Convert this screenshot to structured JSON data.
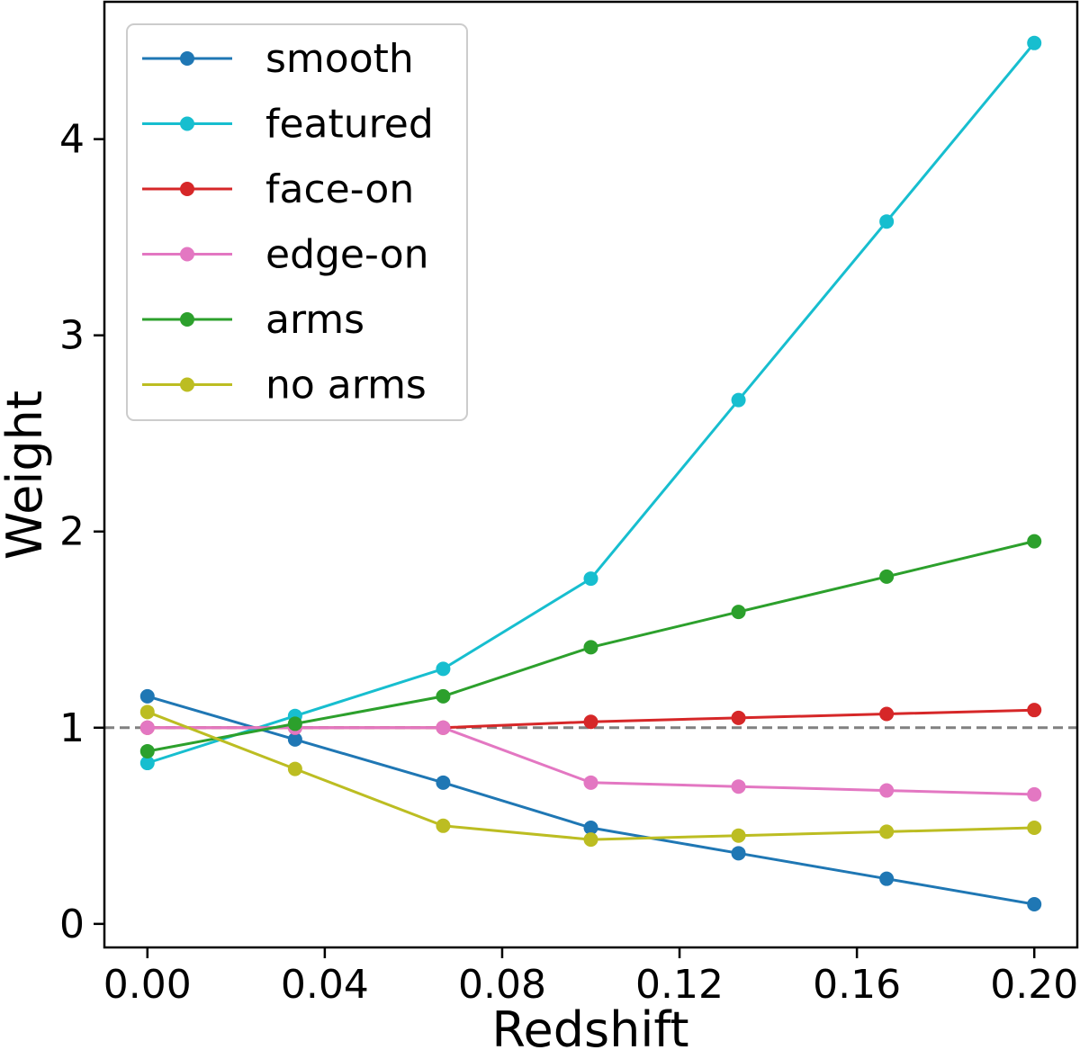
{
  "chart_data": {
    "type": "line",
    "xlabel": "Redshift",
    "ylabel": "Weight",
    "xlim": [
      -0.0097,
      0.2097
    ],
    "ylim": [
      -0.12,
      4.7
    ],
    "xticks": [
      0.0,
      0.04,
      0.08,
      0.12,
      0.16,
      0.2
    ],
    "xtick_labels": [
      "0.00",
      "0.04",
      "0.08",
      "0.12",
      "0.16",
      "0.20"
    ],
    "yticks": [
      0,
      1,
      2,
      3,
      4
    ],
    "ytick_labels": [
      "0",
      "1",
      "2",
      "3",
      "4"
    ],
    "reference_line": {
      "y": 1.0,
      "style": "dashed",
      "color": "#808080"
    },
    "grid": false,
    "legend_position": "upper-left",
    "x": [
      0.0,
      0.0333,
      0.0667,
      0.1,
      0.1333,
      0.1667,
      0.2
    ],
    "series": [
      {
        "name": "smooth",
        "color": "#1f77b4",
        "values": [
          1.16,
          0.94,
          0.72,
          0.49,
          0.36,
          0.23,
          0.1
        ]
      },
      {
        "name": "featured",
        "color": "#17becf",
        "values": [
          0.82,
          1.06,
          1.3,
          1.76,
          2.67,
          3.58,
          4.49
        ]
      },
      {
        "name": "face-on",
        "color": "#d62728",
        "values": [
          1.0,
          1.0,
          1.0,
          1.03,
          1.05,
          1.07,
          1.09
        ]
      },
      {
        "name": "edge-on",
        "color": "#e377c2",
        "values": [
          1.0,
          1.0,
          1.0,
          0.72,
          0.7,
          0.68,
          0.66
        ]
      },
      {
        "name": "arms",
        "color": "#2ca02c",
        "values": [
          0.88,
          1.02,
          1.16,
          1.41,
          1.59,
          1.77,
          1.95
        ]
      },
      {
        "name": "no arms",
        "color": "#bcbd22",
        "values": [
          1.08,
          0.79,
          0.5,
          0.43,
          0.45,
          0.47,
          0.49
        ]
      }
    ]
  }
}
